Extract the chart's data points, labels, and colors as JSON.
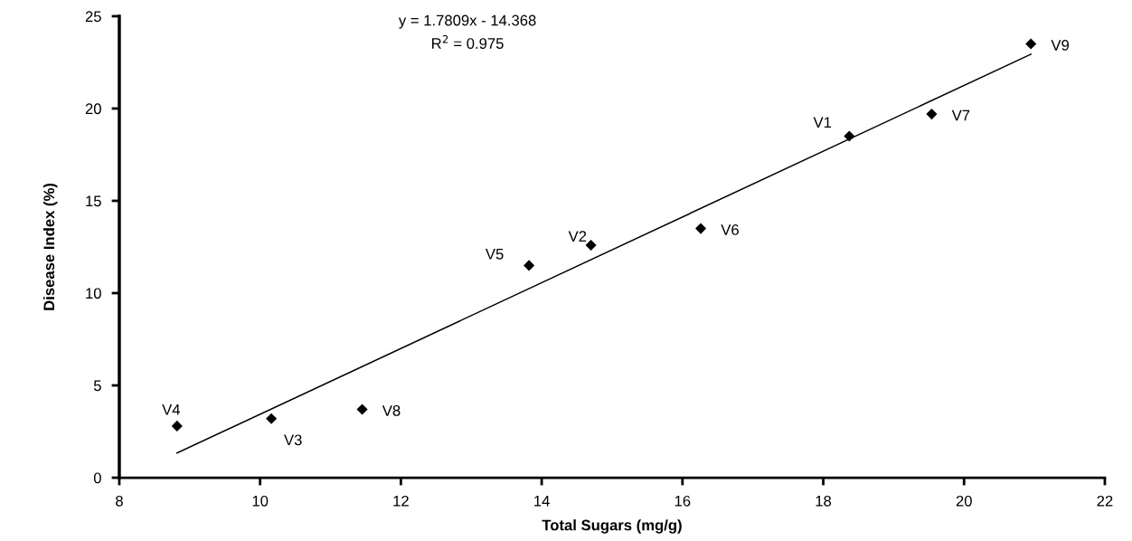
{
  "chart_data": {
    "type": "scatter",
    "xlabel": "Total Sugars (mg/g)",
    "ylabel": "Disease Index (%)",
    "xlim": [
      8,
      22
    ],
    "xticks": [
      8,
      10,
      12,
      14,
      16,
      18,
      20,
      22
    ],
    "ylim": [
      0,
      25
    ],
    "yticks": [
      0,
      5,
      10,
      15,
      20,
      25
    ],
    "grid": false,
    "legend": false,
    "marker": "diamond",
    "series": [
      {
        "color": "#000000",
        "x": [
          8.82,
          10.16,
          11.45,
          13.82,
          14.7,
          16.26,
          18.37,
          19.54,
          20.95
        ],
        "values": [
          2.8,
          3.2,
          3.7,
          11.5,
          12.6,
          13.5,
          18.5,
          19.7,
          23.5
        ]
      },
      {
        "type": "line",
        "marker": "none",
        "color": "#000000",
        "line_style": "solid",
        "x": [
          8.82,
          20.95
        ],
        "values": [
          1.34,
          22.94
        ]
      }
    ],
    "annotations": [
      {
        "text": "V4",
        "x": 8.82,
        "y": 2.8
      },
      {
        "text": "V3",
        "x": 10.16,
        "y": 3.2
      },
      {
        "text": "V8",
        "x": 11.45,
        "y": 3.7
      },
      {
        "text": "V5",
        "x": 13.82,
        "y": 11.5
      },
      {
        "text": "V2",
        "x": 14.7,
        "y": 12.6
      },
      {
        "text": "V6",
        "x": 16.26,
        "y": 13.5
      },
      {
        "text": "V1",
        "x": 18.37,
        "y": 18.5
      },
      {
        "text": "V7",
        "x": 19.54,
        "y": 19.7
      },
      {
        "text": "V9",
        "x": 20.95,
        "y": 23.5
      },
      "y = 1.7809x - 14.368",
      "R$^{2}$ = 0.975"
    ]
  }
}
